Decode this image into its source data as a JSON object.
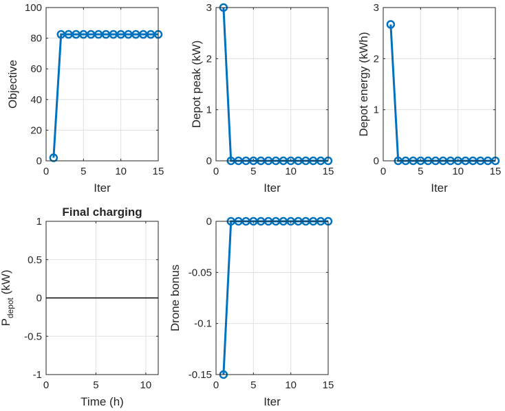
{
  "colors": {
    "series": "#0072BD",
    "axis": "#262626",
    "grid": "#dfdfdf",
    "zero_line": "#000000"
  },
  "chart_data": [
    {
      "id": "objective",
      "type": "line",
      "title": "",
      "xlabel": "Iter",
      "ylabel": "Objective",
      "xlim": [
        0,
        15
      ],
      "ylim": [
        0,
        100
      ],
      "xticks": [
        "0",
        "5",
        "10",
        "15"
      ],
      "yticks": [
        "0",
        "20",
        "40",
        "60",
        "80",
        "100"
      ],
      "grid": true,
      "series": [
        {
          "x": [
            1,
            2,
            3,
            4,
            5,
            6,
            7,
            8,
            9,
            10,
            11,
            12,
            13,
            14,
            15
          ],
          "y": [
            2,
            82.5,
            82.5,
            82.5,
            82.5,
            82.5,
            82.5,
            82.5,
            82.5,
            82.5,
            82.5,
            82.5,
            82.5,
            82.5,
            82.5
          ]
        }
      ]
    },
    {
      "id": "depot-peak",
      "type": "line",
      "title": "",
      "xlabel": "Iter",
      "ylabel": "Depot peak (kW)",
      "xlim": [
        0,
        15
      ],
      "ylim": [
        0,
        3
      ],
      "xticks": [
        "0",
        "5",
        "10",
        "15"
      ],
      "yticks": [
        "0",
        "1",
        "2",
        "3"
      ],
      "grid": true,
      "series": [
        {
          "x": [
            1,
            2,
            3,
            4,
            5,
            6,
            7,
            8,
            9,
            10,
            11,
            12,
            13,
            14,
            15
          ],
          "y": [
            3,
            0,
            0,
            0,
            0,
            0,
            0,
            0,
            0,
            0,
            0,
            0,
            0,
            0,
            0
          ]
        }
      ]
    },
    {
      "id": "depot-energy",
      "type": "line",
      "title": "",
      "xlabel": "Iter",
      "ylabel": "Depot energy (kWh)",
      "xlim": [
        0,
        15
      ],
      "ylim": [
        0,
        3
      ],
      "xticks": [
        "0",
        "5",
        "10",
        "15"
      ],
      "yticks": [
        "0",
        "1",
        "2",
        "3"
      ],
      "grid": true,
      "series": [
        {
          "x": [
            1,
            2,
            3,
            4,
            5,
            6,
            7,
            8,
            9,
            10,
            11,
            12,
            13,
            14,
            15
          ],
          "y": [
            2.67,
            0,
            0,
            0,
            0,
            0,
            0,
            0,
            0,
            0,
            0,
            0,
            0,
            0,
            0
          ]
        }
      ]
    },
    {
      "id": "final-charging",
      "type": "line",
      "title": "Final charging",
      "xlabel": "Time (h)",
      "ylabel": "P",
      "ylabel_subscript": "depot",
      "ylabel_suffix": " (kW)",
      "xlim": [
        0,
        11.25
      ],
      "ylim": [
        -1,
        1
      ],
      "xticks": [
        "0",
        "5",
        "10"
      ],
      "yticks": [
        "-1",
        "-0.5",
        "0",
        "0.5",
        "1"
      ],
      "grid": true,
      "series": [
        {
          "x": [
            0,
            11.25
          ],
          "y": [
            0,
            0
          ]
        }
      ]
    },
    {
      "id": "drone-bonus",
      "type": "line",
      "title": "",
      "xlabel": "Iter",
      "ylabel": "Drone bonus",
      "xlim": [
        0,
        15
      ],
      "ylim": [
        -0.15,
        0
      ],
      "xticks": [
        "0",
        "5",
        "10",
        "15"
      ],
      "yticks": [
        "-0.15",
        "-0.1",
        "-0.05",
        "0"
      ],
      "grid": true,
      "series": [
        {
          "x": [
            1,
            2,
            3,
            4,
            5,
            6,
            7,
            8,
            9,
            10,
            11,
            12,
            13,
            14,
            15
          ],
          "y": [
            -0.15,
            0,
            0,
            0,
            0,
            0,
            0,
            0,
            0,
            0,
            0,
            0,
            0,
            0,
            0
          ]
        }
      ]
    }
  ]
}
